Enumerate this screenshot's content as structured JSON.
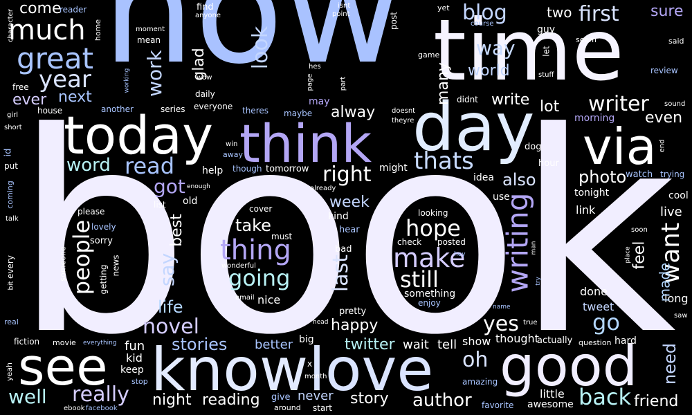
{
  "words": {
    "book": "book",
    "now": "now",
    "time": "time",
    "today": "today",
    "think": "think",
    "day": "day",
    "via": "via",
    "see": "see",
    "know": "know",
    "love": "love",
    "good": "good",
    "much": "much",
    "great": "great",
    "year": "year",
    "blog": "blog",
    "first": "first",
    "way": "way",
    "world": "world",
    "look": "look",
    "work": "work",
    "writer": "writer",
    "word": "word",
    "read": "read",
    "thats": "thats",
    "right": "right",
    "got": "got",
    "also": "also",
    "photo": "photo",
    "thing": "thing",
    "going": "going",
    "make": "make",
    "hope": "hope",
    "still": "still",
    "writing": "writing",
    "want": "want",
    "people": "people",
    "say": "say",
    "last": "last",
    "novel": "novel",
    "yes": "yes",
    "go": "go",
    "stories": "stories",
    "oh": "oh",
    "well": "well",
    "really": "really",
    "night": "night",
    "reading": "reading",
    "story": "story",
    "author": "author",
    "back": "back",
    "friend": "friend",
    "need": "need",
    "feel": "feel",
    "made": "made",
    "life": "life",
    "happy": "happy",
    "twitter": "twitter",
    "next": "next",
    "ever": "ever",
    "come": "come",
    "glad": "glad",
    "lot": "lot",
    "write": "write",
    "alway": "alway",
    "even": "even",
    "week": "week",
    "take": "take",
    "best": "best",
    "many": "many",
    "two": "two",
    "sure": "sure",
    "nice": "nice",
    "better": "better",
    "fun": "fun",
    "kid": "kid",
    "never": "never",
    "wait": "wait",
    "tell": "tell",
    "show": "show",
    "thought": "thought",
    "tweet": "tweet",
    "done": "done",
    "live": "live",
    "long": "long",
    "link": "link",
    "tonight": "tonight",
    "morning": "morning",
    "hour": "hour",
    "idea": "idea",
    "use": "use",
    "dog": "dog",
    "cool": "cool",
    "watch": "watch",
    "trying": "trying",
    "little": "little",
    "awesome": "awesome",
    "favorite": "favorite",
    "actually": "actually",
    "hard": "hard",
    "question": "question",
    "amazing": "amazing",
    "keep": "keep",
    "stop": "stop",
    "give": "give",
    "around": "around",
    "start": "start",
    "month": "month",
    "x": "x",
    "big": "big",
    "pretty": "pretty",
    "enjoy": "enjoy",
    "something": "something",
    "check": "check",
    "posted": "posted",
    "looking": "looking",
    "cover": "cover",
    "kind": "kind",
    "hear": "hear",
    "bad": "bad",
    "must": "must",
    "wonderful": "wonderful",
    "email": "email",
    "please": "please",
    "lovely": "lovely",
    "sorry": "sorry",
    "news": "news",
    "getting": "getting",
    "someone": "someone",
    "every": "every",
    "bit": "bit",
    "real": "real",
    "fiction": "fiction",
    "movie": "movie",
    "everything": "everything",
    "yeah": "yeah",
    "ebook": "ebook",
    "facebook": "facebook",
    "talk": "talk",
    "coming": "coming",
    "put": "put",
    "id": "id",
    "short": "short",
    "girl": "girl",
    "free": "free",
    "house": "house",
    "another": "another",
    "series": "series",
    "everyone": "everyone",
    "theres": "theres",
    "daily": "daily",
    "may": "may",
    "maybe": "maybe",
    "didnt": "didnt",
    "doesnt": "doesnt",
    "theyre": "theyre",
    "help": "help",
    "though": "though",
    "tomorrow": "tomorrow",
    "enough": "enough",
    "already": "already",
    "might": "might",
    "win": "win",
    "away": "away",
    "old": "old",
    "list": "list",
    "find": "find",
    "anyone": "anyone",
    "wow": "wow",
    "isnt": "isnt",
    "point": "point",
    "post": "post",
    "yet": "yet",
    "course": "course",
    "guy": "guy",
    "seem": "seem",
    "said": "said",
    "game": "game",
    "let": "let",
    "stuff": "stuff",
    "review": "review",
    "sound": "sound",
    "home": "home",
    "moment": "moment",
    "mean": "mean",
    "reader": "reader",
    "character": "character",
    "working": "working",
    "hes": "hes",
    "page": "page",
    "part": "part",
    "end": "end",
    "soon": "soon",
    "place": "place",
    "man": "man",
    "hey": "hey",
    "try": "try",
    "name": "name",
    "true": "true",
    "saw": "saw",
    "head": "head"
  }
}
